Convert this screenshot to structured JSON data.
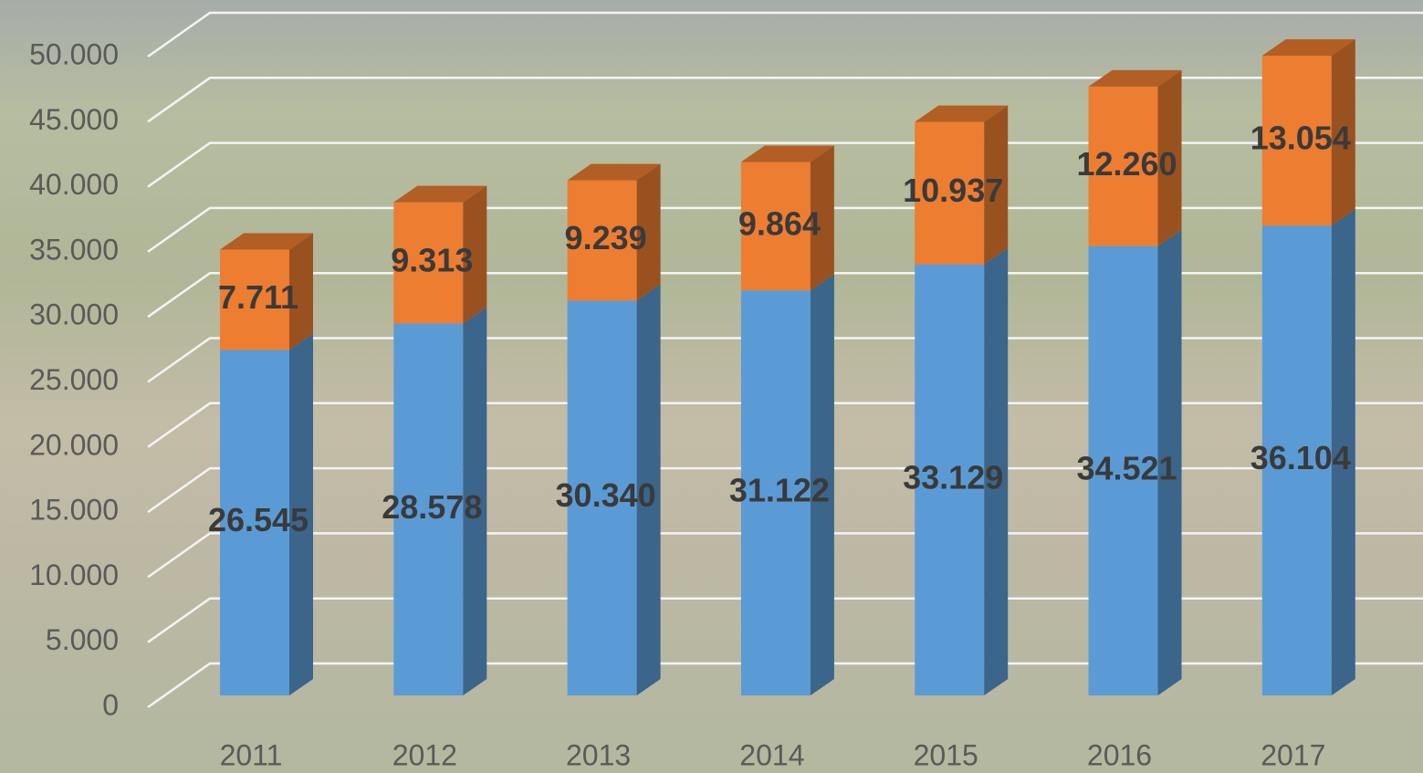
{
  "chart_data": {
    "type": "bar3d_stacked",
    "categories": [
      "2011",
      "2012",
      "2013",
      "2014",
      "2015",
      "2016",
      "2017"
    ],
    "series": [
      {
        "color": "#5b9bd5",
        "values": [
          26545,
          28578,
          30340,
          31122,
          33129,
          34521,
          36104
        ],
        "value_labels": [
          "26.545",
          "28.578",
          "30.340",
          "31.122",
          "33.129",
          "34.521",
          "36.104"
        ]
      },
      {
        "color": "#ed7d31",
        "values": [
          7711,
          9313,
          9239,
          9864,
          10937,
          12260,
          13054
        ],
        "value_labels": [
          "7.711",
          "9.313",
          "9.239",
          "9.864",
          "10.937",
          "12.260",
          "13.054"
        ]
      }
    ],
    "ylim": [
      0,
      50000
    ],
    "yticks": [
      0,
      {
        "value": 5000,
        "label": "5.000"
      },
      {
        "value": 10000,
        "label": "10.000"
      },
      {
        "value": 15000,
        "label": "15.000"
      },
      {
        "value": 20000,
        "label": "20.000"
      },
      {
        "value": 25000,
        "label": "25.000"
      },
      {
        "value": 30000,
        "label": "30.000"
      },
      {
        "value": 35000,
        "label": "35.000"
      },
      {
        "value": 40000,
        "label": "40.000"
      },
      {
        "value": 45000,
        "label": "45.000"
      },
      {
        "value": 50000,
        "label": "50.000"
      }
    ],
    "grid": true
  }
}
